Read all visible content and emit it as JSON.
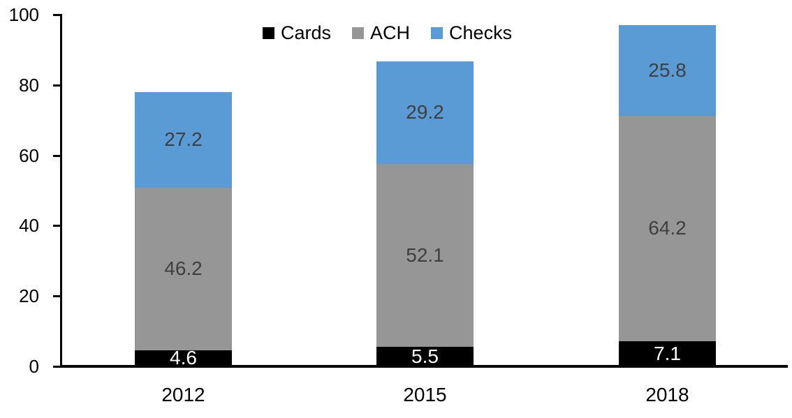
{
  "chart_data": {
    "type": "bar",
    "stacked": true,
    "title": "",
    "xlabel": "",
    "ylabel": "",
    "categories": [
      "2012",
      "2015",
      "2018"
    ],
    "series": [
      {
        "name": "Cards",
        "color": "#000000",
        "label_color": "#ffffff",
        "values": [
          4.6,
          5.5,
          7.1
        ]
      },
      {
        "name": "ACH",
        "color": "#969696",
        "label_color": "#3f3f3f",
        "values": [
          46.2,
          52.1,
          64.2
        ]
      },
      {
        "name": "Checks",
        "color": "#5b9bd5",
        "label_color": "#3f3f3f",
        "values": [
          27.2,
          29.2,
          25.8
        ]
      }
    ],
    "stack_totals": [
      78.0,
      86.8,
      97.1
    ],
    "ylim": [
      0,
      100
    ],
    "yticks": [
      0,
      20,
      40,
      60,
      80,
      100
    ],
    "grid": false,
    "data_labels": true,
    "legend_position": "top-center",
    "axis_color": "#000000",
    "background_color": "#ffffff"
  }
}
